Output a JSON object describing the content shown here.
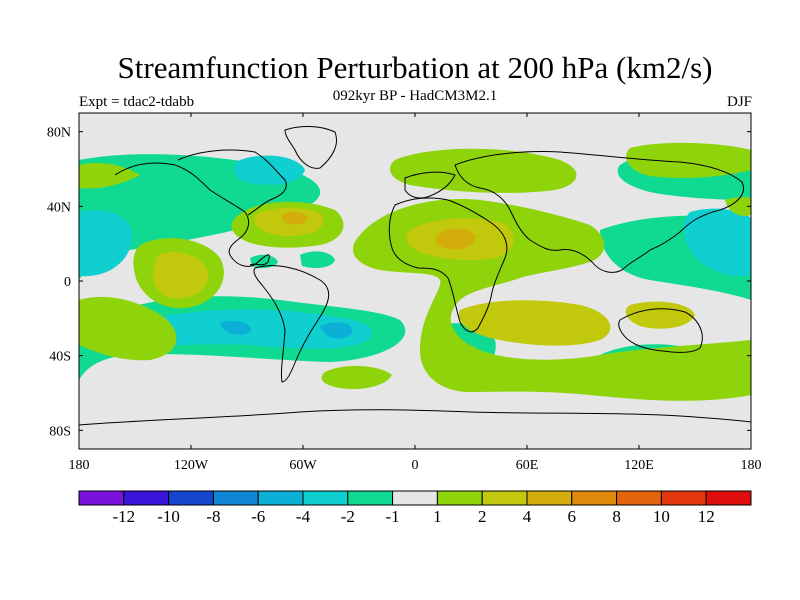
{
  "chart_data": {
    "type": "map-contour",
    "title": "Streamfunction Perturbation at 200 hPa (km2/s)",
    "subtitle": "092kyr BP - HadCM3M2.1",
    "experiment": "Expt = tdac2-tdabb",
    "season": "DJF",
    "x_ticks": [
      "180",
      "120W",
      "60W",
      "0",
      "60E",
      "120E",
      "180"
    ],
    "y_ticks": [
      "80N",
      "40N",
      "0",
      "40S",
      "80S"
    ],
    "lon_range": [
      -180,
      180
    ],
    "lat_range": [
      -90,
      90
    ],
    "colorbar": {
      "levels": [
        "-12",
        "-10",
        "-8",
        "-6",
        "-4",
        "-2",
        "-1",
        "1",
        "2",
        "4",
        "6",
        "8",
        "10",
        "12"
      ],
      "colors": [
        "#7a12dc",
        "#3a14d8",
        "#1346cc",
        "#0f86d4",
        "#0cb0d6",
        "#10cfd0",
        "#10da92",
        "#e6e6e6",
        "#8fd40a",
        "#c2c80c",
        "#d4ac0c",
        "#de8a0c",
        "#e2640c",
        "#e2360c",
        "#e00e0e"
      ]
    }
  }
}
